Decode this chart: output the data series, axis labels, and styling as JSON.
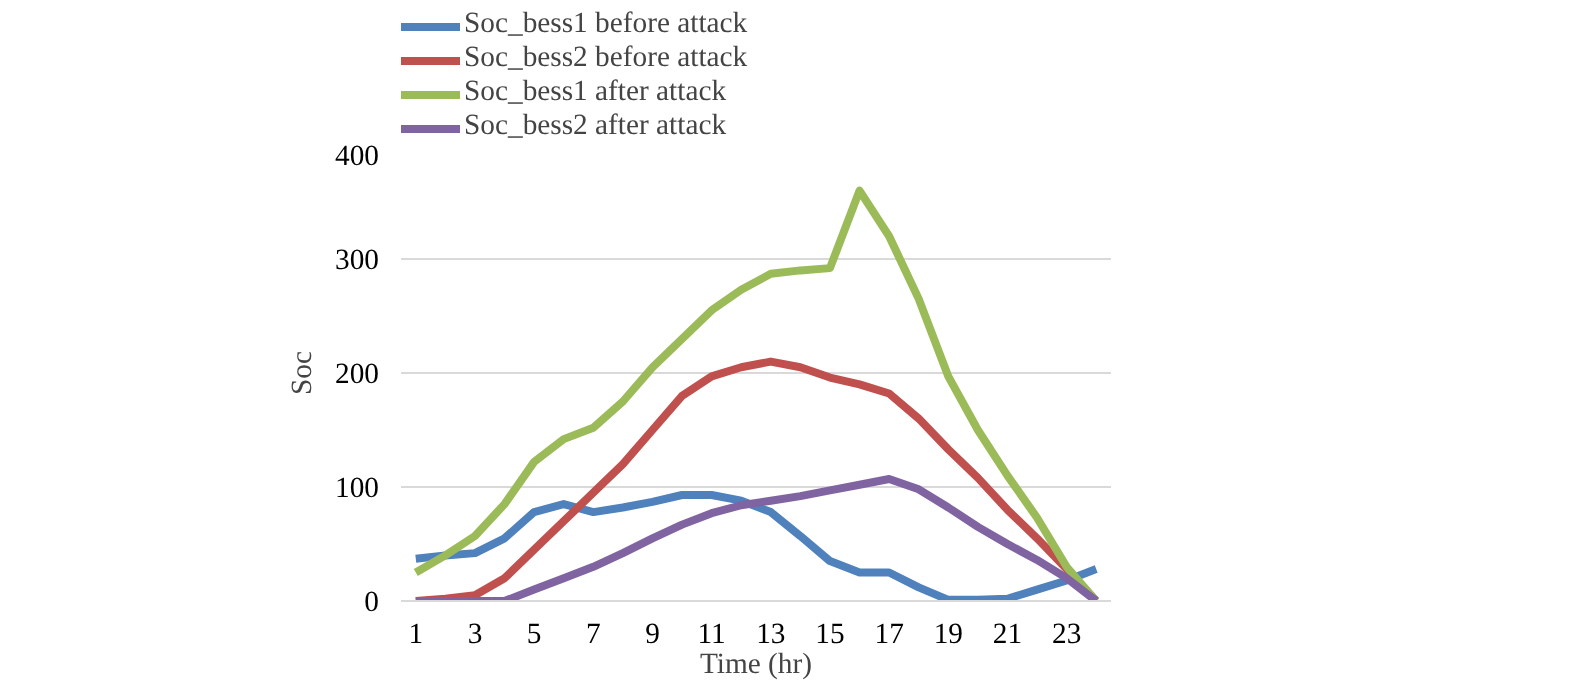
{
  "chart_data": {
    "type": "line",
    "xlabel": "Time (hr)",
    "ylabel": "Soc",
    "x": [
      1,
      2,
      3,
      4,
      5,
      6,
      7,
      8,
      9,
      10,
      11,
      12,
      13,
      14,
      15,
      16,
      17,
      18,
      19,
      20,
      21,
      22,
      23,
      24
    ],
    "xlim": [
      0.5,
      24.5
    ],
    "xticks": [
      1,
      3,
      5,
      7,
      9,
      11,
      13,
      15,
      17,
      19,
      21,
      23
    ],
    "ylim": [
      0,
      400
    ],
    "yticks": [
      0,
      100,
      200,
      300,
      400
    ],
    "grid": "y",
    "legend": "top",
    "marker": "none",
    "line_style": "solid",
    "series": [
      {
        "name": "Soc_bess1 before attack",
        "color": "#4f81bd",
        "values": [
          37,
          40,
          42,
          55,
          78,
          85,
          78,
          82,
          87,
          93,
          93,
          88,
          78,
          57,
          35,
          25,
          25,
          12,
          1,
          1,
          2,
          10,
          18,
          28
        ]
      },
      {
        "name": "Soc_bess2 before attack",
        "color": "#c0504d",
        "values": [
          0,
          2,
          5,
          20,
          45,
          70,
          95,
          120,
          150,
          180,
          197,
          205,
          210,
          205,
          196,
          190,
          182,
          160,
          133,
          108,
          80,
          55,
          28,
          0
        ]
      },
      {
        "name": "Soc_bess1 after attack",
        "color": "#9bbb59",
        "values": [
          25,
          40,
          57,
          85,
          122,
          142,
          152,
          175,
          205,
          230,
          255,
          273,
          287,
          290,
          292,
          360,
          320,
          265,
          197,
          150,
          110,
          73,
          30,
          0
        ]
      },
      {
        "name": "Soc_bess2 after attack",
        "color": "#8064a2",
        "values": [
          0,
          0,
          0,
          0,
          10,
          20,
          30,
          42,
          55,
          67,
          77,
          84,
          88,
          92,
          97,
          102,
          107,
          98,
          82,
          65,
          50,
          36,
          20,
          0
        ]
      }
    ]
  }
}
